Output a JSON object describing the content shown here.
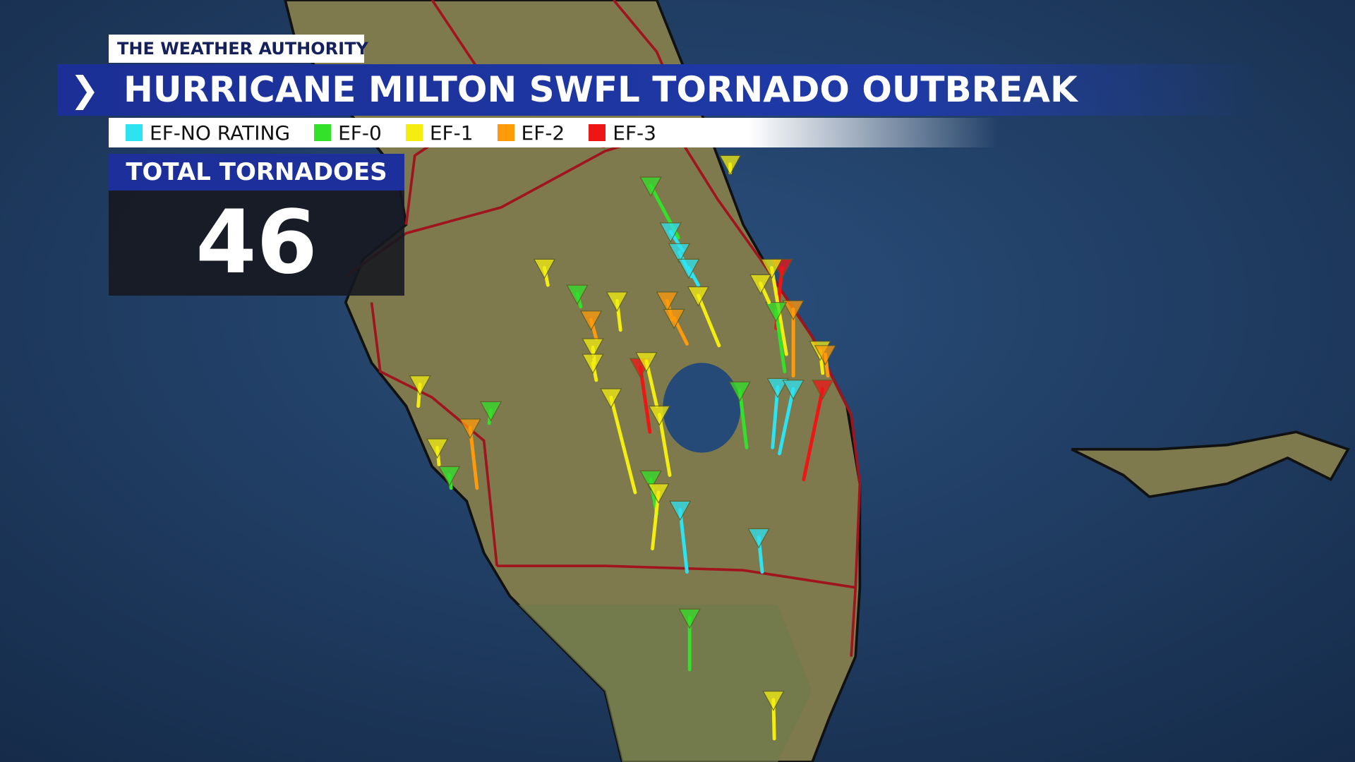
{
  "header": {
    "brand": "THE WEATHER AUTHORITY",
    "title": "HURRICANE MILTON SWFL TORNADO OUTBREAK"
  },
  "legend": [
    {
      "label": "EF-NO RATING",
      "color": "#2de3f2"
    },
    {
      "label": "EF-0",
      "color": "#33e02a"
    },
    {
      "label": "EF-1",
      "color": "#f4ee10"
    },
    {
      "label": "EF-2",
      "color": "#ff9a0a"
    },
    {
      "label": "EF-3",
      "color": "#ee1515"
    }
  ],
  "total": {
    "label": "TOTAL TORNADOES",
    "value": 46
  }
}
